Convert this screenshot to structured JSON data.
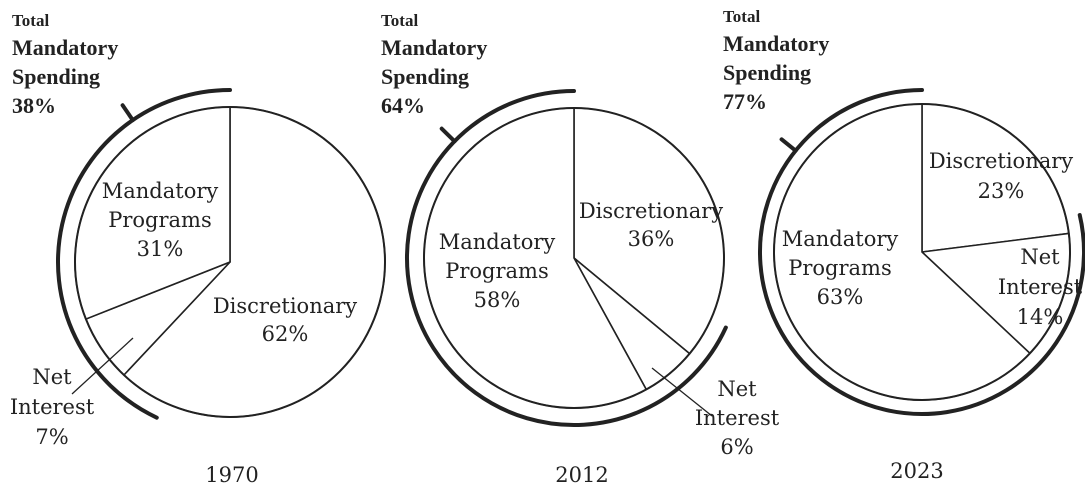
{
  "chart_data": [
    {
      "type": "pie",
      "year": "1970",
      "slices": [
        {
          "name": "Discretionary",
          "value": 62,
          "value_label": "62%"
        },
        {
          "name": "Net Interest",
          "value": 7,
          "value_label": "7%"
        },
        {
          "name": "Mandatory Programs",
          "value": 31,
          "value_label": "31%"
        }
      ],
      "bracket": {
        "title_lines": [
          "Total",
          "Mandatory",
          "Spending"
        ],
        "value_label": "38%",
        "value": 38
      }
    },
    {
      "type": "pie",
      "year": "2012",
      "slices": [
        {
          "name": "Discretionary",
          "value": 36,
          "value_label": "36%"
        },
        {
          "name": "Net Interest",
          "value": 6,
          "value_label": "6%"
        },
        {
          "name": "Mandatory Programs",
          "value": 58,
          "value_label": "58%"
        }
      ],
      "bracket": {
        "title_lines": [
          "Total",
          "Mandatory",
          "Spending"
        ],
        "value_label": "64%",
        "value": 64
      }
    },
    {
      "type": "pie",
      "year": "2023",
      "slices": [
        {
          "name": "Discretionary",
          "value": 23,
          "value_label": "23%"
        },
        {
          "name": "Net Interest",
          "value": 14,
          "value_label": "14%"
        },
        {
          "name": "Mandatory Programs",
          "value": 63,
          "value_label": "63%"
        }
      ],
      "bracket": {
        "title_lines": [
          "Total",
          "Mandatory",
          "Spending"
        ],
        "value_label": "77%",
        "value": 77
      }
    }
  ]
}
